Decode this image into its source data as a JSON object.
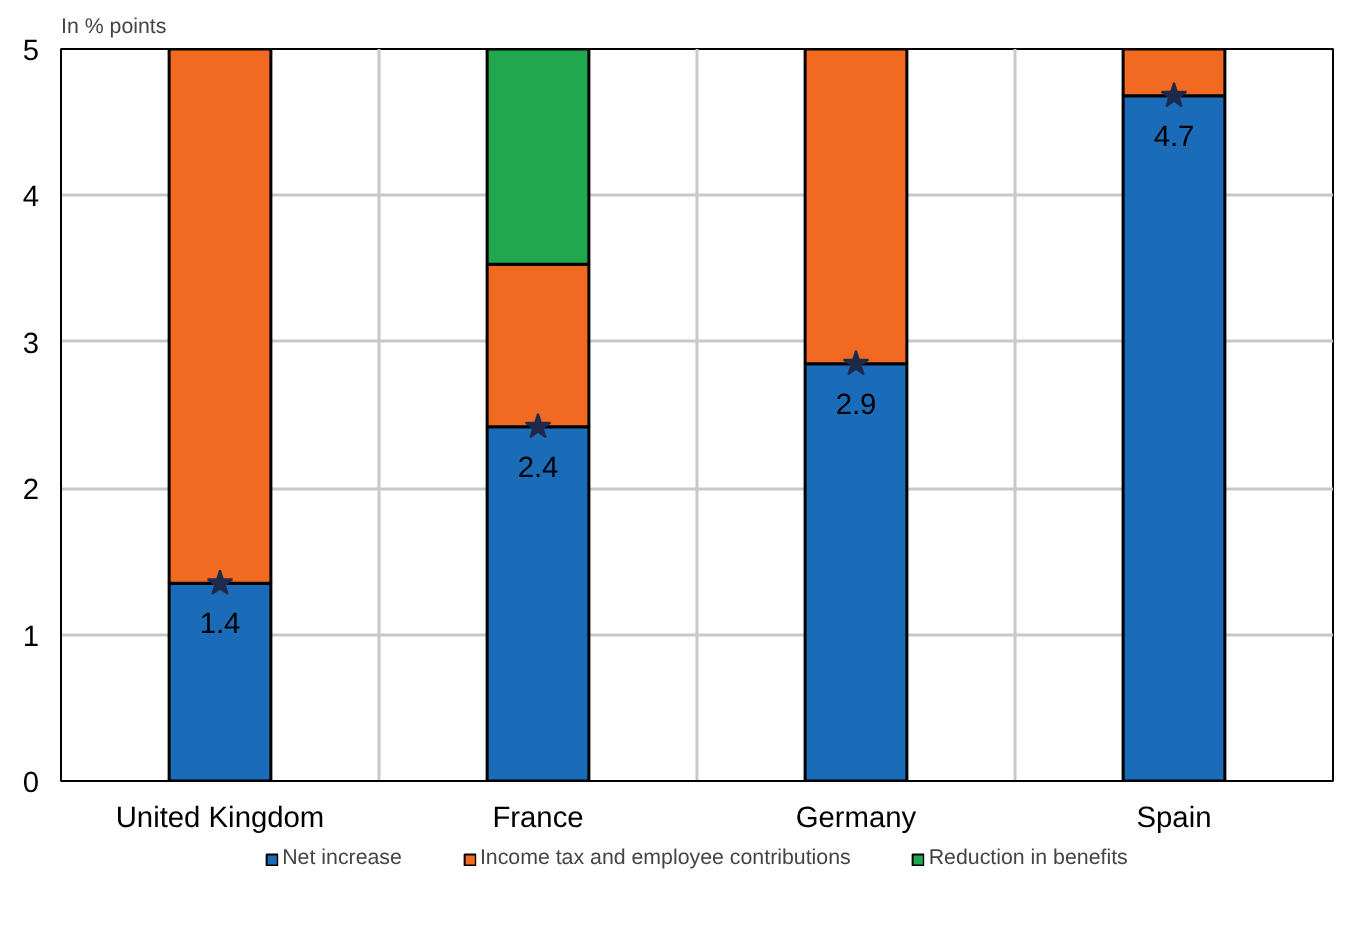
{
  "chart_data": {
    "type": "bar",
    "stacked": true,
    "ylabel": "In % points",
    "categories": [
      "United Kingdom",
      "France",
      "Germany",
      "Spain"
    ],
    "series": [
      {
        "name": "Net increase",
        "color": "#1a6bb8",
        "values": [
          1.35,
          2.42,
          2.85,
          4.68
        ],
        "value_labels": [
          "1.4",
          "2.4",
          "2.9",
          "4.7"
        ]
      },
      {
        "name": "Income tax and employee contributions",
        "color": "#f26a21",
        "values": [
          3.65,
          1.11,
          2.15,
          0.32
        ]
      },
      {
        "name": "Reduction in benefits",
        "color": "#21a84f",
        "values": [
          null,
          1.47,
          null,
          null
        ]
      },
      {
        "type": "scatter",
        "color": "#1f2a4a",
        "values": [
          1.35,
          2.42,
          2.85,
          4.68
        ]
      }
    ],
    "marker": "star",
    "ylim": [
      0,
      5
    ],
    "yticks": [
      0,
      1,
      2,
      3,
      4,
      5
    ],
    "grid": true,
    "legend": "bottom"
  }
}
